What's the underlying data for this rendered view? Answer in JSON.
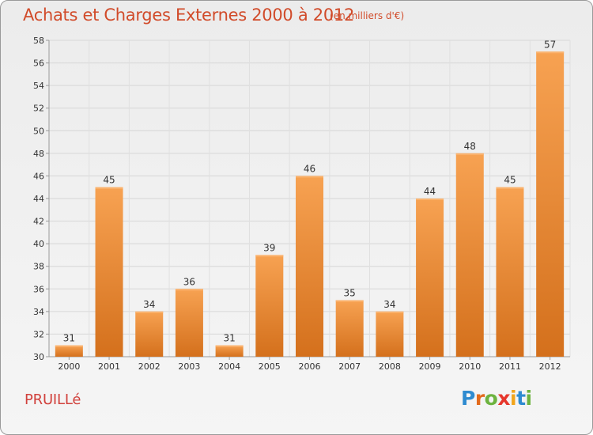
{
  "header": {
    "title": "Achats et Charges Externes 2000 à 2012",
    "subtitle": "(en milliers d'€)"
  },
  "footer": {
    "town": "PRUILLé",
    "logo": [
      {
        "ch": "P",
        "color": "#2e8bd0"
      },
      {
        "ch": "r",
        "color": "#e26a1c"
      },
      {
        "ch": "o",
        "color": "#6db33f"
      },
      {
        "ch": "x",
        "color": "#e6362c"
      },
      {
        "ch": "i",
        "color": "#f2a51a"
      },
      {
        "ch": "t",
        "color": "#2e8bd0"
      },
      {
        "ch": "i",
        "color": "#6db33f"
      }
    ]
  },
  "chart_data": {
    "type": "bar",
    "categories": [
      "2000",
      "2001",
      "2002",
      "2003",
      "2004",
      "2005",
      "2006",
      "2007",
      "2008",
      "2009",
      "2010",
      "2011",
      "2012"
    ],
    "values": [
      31,
      45,
      34,
      36,
      31,
      39,
      46,
      35,
      34,
      44,
      48,
      45,
      57
    ],
    "ylim": [
      30,
      58
    ],
    "yticks": [
      30,
      32,
      34,
      36,
      38,
      40,
      42,
      44,
      46,
      48,
      50,
      52,
      54,
      56,
      58
    ],
    "grid": true,
    "bar_color_top": "#f7a252",
    "bar_color_bottom": "#d4701c",
    "title": "Achats et Charges Externes 2000 à 2012",
    "subtitle": "(en milliers d'€)"
  }
}
